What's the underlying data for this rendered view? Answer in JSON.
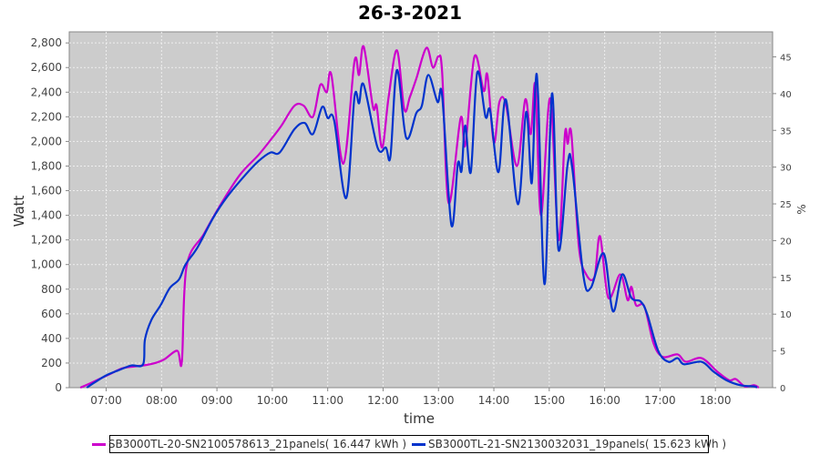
{
  "title": "26-3-2021",
  "chart_data": {
    "type": "line",
    "title": "26-3-2021",
    "xlabel": "time",
    "ylabel": "Watt",
    "y2label": "%",
    "xlim": [
      "06:20",
      "19:02"
    ],
    "ylim": [
      0,
      2890
    ],
    "y2lim": [
      0,
      48.4
    ],
    "grid": true,
    "legend_position": "bottom",
    "x_ticks": [
      "07:00",
      "08:00",
      "09:00",
      "10:00",
      "11:00",
      "12:00",
      "13:00",
      "14:00",
      "15:00",
      "16:00",
      "17:00",
      "18:00"
    ],
    "y_ticks": [
      0,
      200,
      400,
      600,
      800,
      1000,
      1200,
      1400,
      1600,
      1800,
      2000,
      2200,
      2400,
      2600,
      2800
    ],
    "y_tick_labels": [
      "0",
      "200",
      "400",
      "600",
      "800",
      "1,000",
      "1,200",
      "1,400",
      "1,600",
      "1,800",
      "2,000",
      "2,200",
      "2,400",
      "2,600",
      "2,800"
    ],
    "y2_ticks": [
      0,
      5,
      10,
      15,
      20,
      25,
      30,
      35,
      40,
      45
    ],
    "y2_tick_labels": [
      "0",
      "5",
      "10",
      "15",
      "20",
      "25",
      "30",
      "35",
      "40",
      "45"
    ],
    "series": [
      {
        "name": "SB3000TL-20-SN2100578613_21panels( 16.447 kWh )",
        "color": "#cc00cc",
        "x": [
          "06:32",
          "06:44",
          "07:04",
          "07:19",
          "07:40",
          "07:53",
          "08:03",
          "08:17",
          "08:22",
          "08:27",
          "08:46",
          "09:05",
          "09:25",
          "09:45",
          "10:00",
          "10:10",
          "10:24",
          "10:34",
          "10:44",
          "10:52",
          "10:59",
          "11:04",
          "11:17",
          "11:29",
          "11:34",
          "11:39",
          "11:49",
          "11:53",
          "11:59",
          "12:06",
          "12:15",
          "12:23",
          "12:29",
          "12:36",
          "12:47",
          "12:54",
          "13:00",
          "13:04",
          "13:11",
          "13:24",
          "13:29",
          "13:39",
          "13:49",
          "13:53",
          "14:00",
          "14:06",
          "14:13",
          "14:25",
          "14:34",
          "14:40",
          "14:45",
          "14:51",
          "15:01",
          "15:10",
          "15:17",
          "15:20",
          "15:24",
          "15:32",
          "15:40",
          "15:49",
          "15:55",
          "16:04",
          "16:17",
          "16:25",
          "16:29",
          "16:34",
          "16:43",
          "16:53",
          "17:03",
          "17:19",
          "17:28",
          "17:45",
          "18:02",
          "18:15",
          "18:22",
          "18:32",
          "18:42",
          "18:47"
        ],
        "y": [
          0,
          40,
          110,
          160,
          180,
          200,
          230,
          300,
          210,
          980,
          1250,
          1500,
          1730,
          1890,
          2030,
          2130,
          2290,
          2290,
          2200,
          2460,
          2400,
          2540,
          1820,
          2650,
          2540,
          2770,
          2280,
          2290,
          1950,
          2360,
          2740,
          2260,
          2360,
          2510,
          2760,
          2600,
          2690,
          2560,
          1500,
          2190,
          1970,
          2690,
          2410,
          2540,
          1990,
          2320,
          2300,
          1800,
          2340,
          2060,
          2460,
          1400,
          2350,
          1200,
          2060,
          1980,
          2060,
          1150,
          920,
          900,
          1230,
          730,
          920,
          710,
          820,
          670,
          660,
          360,
          250,
          270,
          210,
          240,
          130,
          60,
          70,
          10,
          20,
          0
        ]
      },
      {
        "name": "SB3000TL-21-SN2130032031_19panels( 15.623 kWh )",
        "color": "#0033cc",
        "x": [
          "06:39",
          "06:47",
          "07:00",
          "07:13",
          "07:27",
          "07:40",
          "07:42",
          "07:49",
          "07:59",
          "08:09",
          "08:19",
          "08:26",
          "08:39",
          "08:56",
          "09:11",
          "09:31",
          "09:45",
          "09:58",
          "10:08",
          "10:24",
          "10:35",
          "10:44",
          "10:54",
          "11:00",
          "11:07",
          "11:20",
          "11:29",
          "11:34",
          "11:39",
          "11:54",
          "12:03",
          "12:08",
          "12:15",
          "12:25",
          "12:36",
          "12:42",
          "12:49",
          "12:59",
          "13:04",
          "13:14",
          "13:21",
          "13:25",
          "13:29",
          "13:35",
          "13:42",
          "13:51",
          "13:56",
          "14:05",
          "14:13",
          "14:26",
          "14:35",
          "14:41",
          "14:45",
          "14:48",
          "14:55",
          "15:03",
          "15:10",
          "15:20",
          "15:25",
          "15:37",
          "15:45",
          "15:59",
          "16:09",
          "16:19",
          "16:29",
          "16:39",
          "16:46",
          "16:58",
          "17:09",
          "17:19",
          "17:26",
          "17:45",
          "17:58",
          "18:12",
          "18:27",
          "18:42",
          "18:45"
        ],
        "y": [
          0,
          40,
          100,
          140,
          180,
          190,
          390,
          550,
          670,
          810,
          880,
          1000,
          1140,
          1380,
          1550,
          1730,
          1840,
          1910,
          1910,
          2100,
          2150,
          2060,
          2280,
          2190,
          2170,
          1540,
          2360,
          2310,
          2460,
          1950,
          1950,
          1880,
          2580,
          2030,
          2230,
          2290,
          2540,
          2320,
          2370,
          1320,
          1820,
          1760,
          2130,
          1750,
          2560,
          2200,
          2250,
          1750,
          2340,
          1490,
          2240,
          1660,
          2450,
          2360,
          840,
          2390,
          1120,
          1820,
          1780,
          910,
          810,
          1090,
          620,
          920,
          730,
          700,
          600,
          300,
          210,
          240,
          190,
          210,
          130,
          60,
          20,
          10,
          0
        ]
      }
    ]
  }
}
